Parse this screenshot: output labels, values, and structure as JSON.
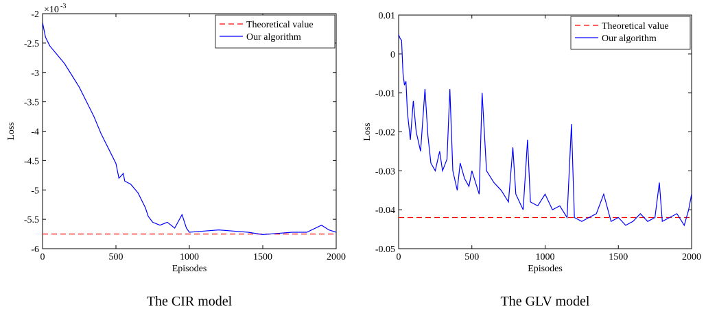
{
  "chart_data": [
    {
      "type": "line",
      "caption": "The CIR model",
      "xlabel": "Episodes",
      "ylabel": "Loss",
      "y_multiplier": {
        "base": "×10",
        "exponent": "-3"
      },
      "xlim": [
        0,
        2000
      ],
      "ylim": [
        -6,
        -2
      ],
      "xticks": [
        0,
        500,
        1000,
        1500,
        2000
      ],
      "yticks": [
        -2,
        -2.5,
        -3,
        -3.5,
        -4,
        -4.5,
        -5,
        -5.5,
        -6
      ],
      "legend": "upper right",
      "series": [
        {
          "name": "Theoretical value",
          "color": "#ff0000",
          "style": "dashed",
          "x": [
            0,
            2000
          ],
          "values": [
            -5.75,
            -5.75
          ]
        },
        {
          "name": "Our algorithm",
          "color": "#0000ff",
          "style": "solid",
          "x": [
            0,
            20,
            50,
            100,
            150,
            200,
            250,
            300,
            350,
            400,
            450,
            500,
            520,
            550,
            560,
            600,
            650,
            700,
            720,
            750,
            800,
            850,
            900,
            950,
            980,
            1000,
            1100,
            1200,
            1300,
            1400,
            1500,
            1600,
            1700,
            1800,
            1900,
            1950,
            2000
          ],
          "values": [
            -2.15,
            -2.4,
            -2.55,
            -2.7,
            -2.85,
            -3.05,
            -3.25,
            -3.5,
            -3.75,
            -4.05,
            -4.3,
            -4.55,
            -4.8,
            -4.72,
            -4.85,
            -4.9,
            -5.05,
            -5.3,
            -5.45,
            -5.55,
            -5.6,
            -5.55,
            -5.65,
            -5.42,
            -5.65,
            -5.72,
            -5.7,
            -5.68,
            -5.7,
            -5.72,
            -5.76,
            -5.74,
            -5.72,
            -5.72,
            -5.6,
            -5.68,
            -5.72
          ]
        }
      ]
    },
    {
      "type": "line",
      "caption": "The GLV model",
      "xlabel": "Episodes",
      "ylabel": "Loss",
      "xlim": [
        0,
        2000
      ],
      "ylim": [
        -0.05,
        0.01
      ],
      "xticks": [
        0,
        500,
        1000,
        1500,
        2000
      ],
      "yticks": [
        0.01,
        0,
        -0.01,
        -0.02,
        -0.03,
        -0.04,
        -0.05
      ],
      "legend": "upper right",
      "series": [
        {
          "name": "Theoretical value",
          "color": "#ff0000",
          "style": "dashed",
          "x": [
            0,
            2000
          ],
          "values": [
            -0.042,
            -0.042
          ]
        },
        {
          "name": "Our algorithm",
          "color": "#0000ff",
          "style": "solid",
          "x": [
            0,
            10,
            20,
            30,
            40,
            50,
            60,
            80,
            100,
            120,
            150,
            180,
            200,
            220,
            250,
            280,
            300,
            330,
            350,
            370,
            400,
            420,
            450,
            480,
            500,
            550,
            570,
            600,
            650,
            700,
            750,
            780,
            800,
            850,
            880,
            900,
            950,
            1000,
            1050,
            1100,
            1150,
            1180,
            1200,
            1250,
            1300,
            1350,
            1400,
            1450,
            1500,
            1550,
            1600,
            1650,
            1700,
            1750,
            1780,
            1800,
            1850,
            1900,
            1950,
            1980,
            2000
          ],
          "values": [
            0.005,
            0.004,
            0.0035,
            -0.005,
            -0.008,
            -0.007,
            -0.015,
            -0.022,
            -0.012,
            -0.02,
            -0.025,
            -0.009,
            -0.021,
            -0.028,
            -0.03,
            -0.025,
            -0.03,
            -0.027,
            -0.009,
            -0.03,
            -0.035,
            -0.028,
            -0.032,
            -0.034,
            -0.03,
            -0.036,
            -0.01,
            -0.03,
            -0.033,
            -0.035,
            -0.038,
            -0.024,
            -0.036,
            -0.04,
            -0.022,
            -0.038,
            -0.039,
            -0.036,
            -0.04,
            -0.039,
            -0.042,
            -0.018,
            -0.042,
            -0.043,
            -0.042,
            -0.041,
            -0.036,
            -0.043,
            -0.042,
            -0.044,
            -0.043,
            -0.041,
            -0.043,
            -0.042,
            -0.033,
            -0.043,
            -0.042,
            -0.041,
            -0.044,
            -0.04,
            -0.036
          ]
        }
      ]
    }
  ]
}
